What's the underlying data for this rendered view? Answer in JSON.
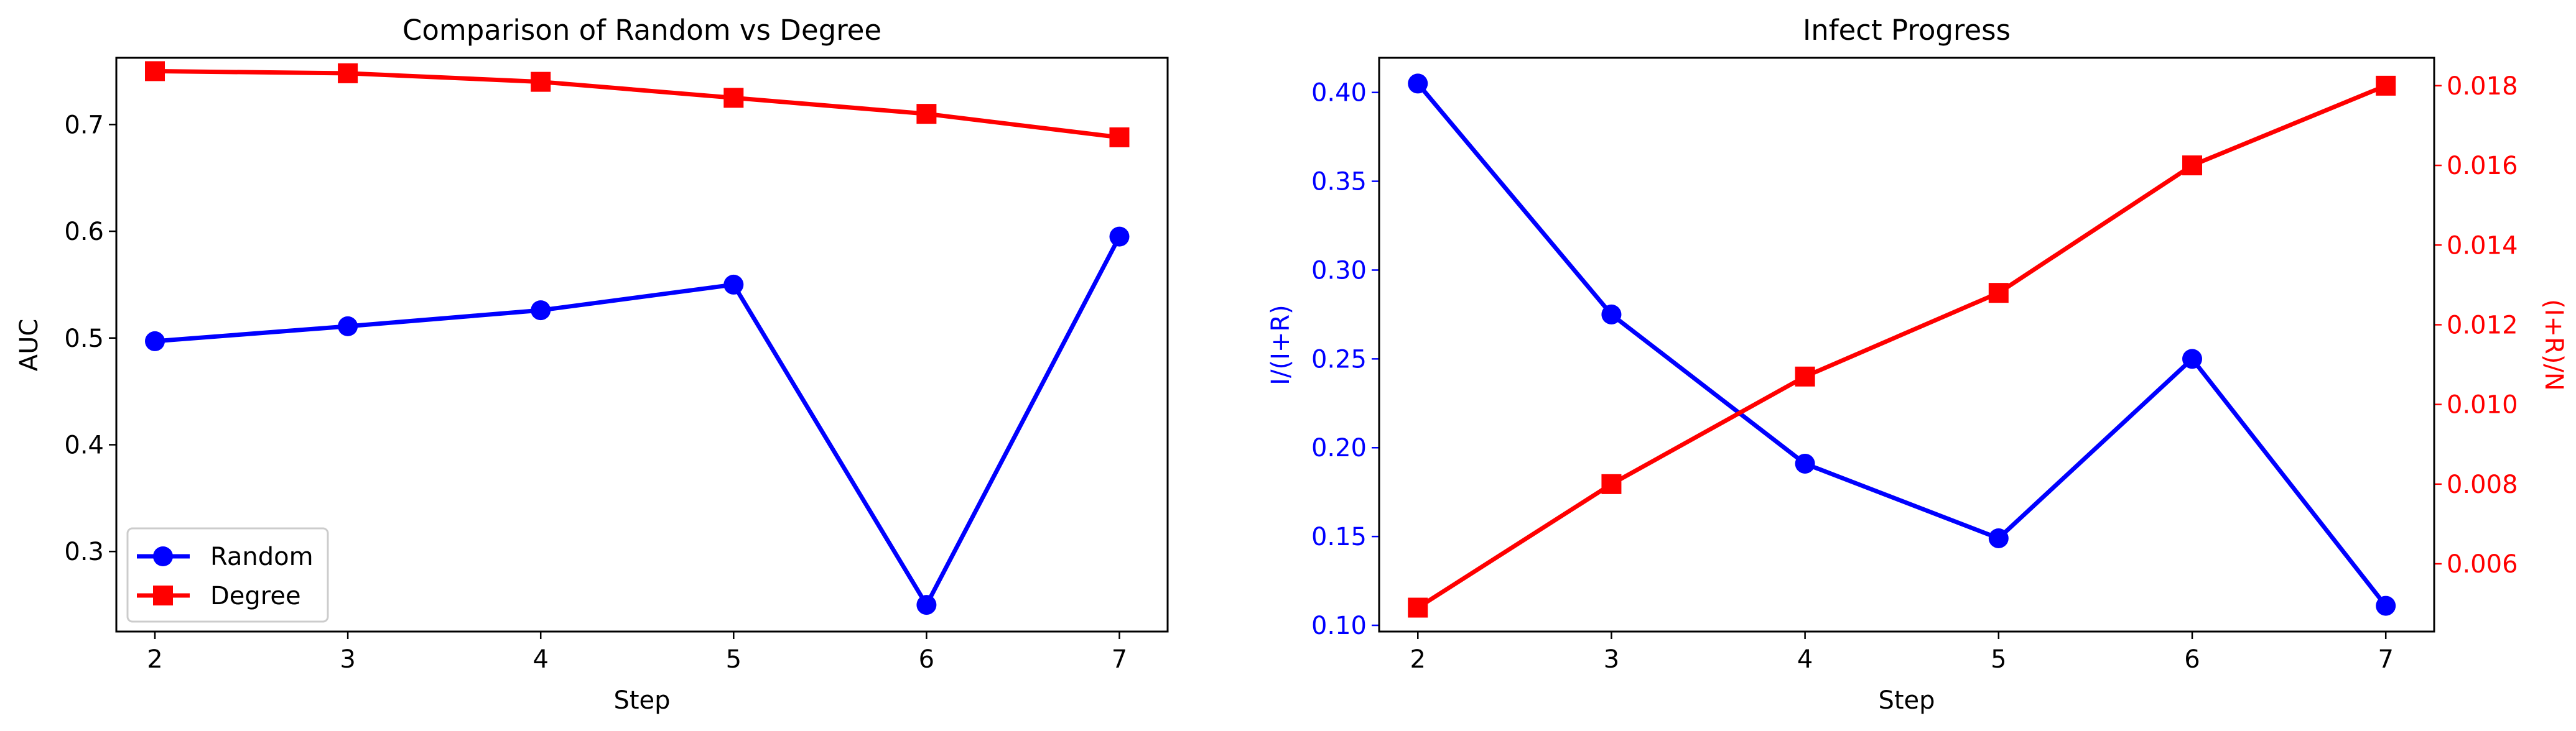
{
  "chart_data": [
    {
      "type": "line",
      "title": "Comparison of Random vs Degree",
      "xlabel": "Step",
      "ylabel": "AUC",
      "x": [
        2,
        3,
        4,
        5,
        6,
        7
      ],
      "xlim": [
        1.8,
        7.25
      ],
      "ylim": [
        0.225,
        0.7625
      ],
      "xticks": [
        2,
        3,
        4,
        5,
        6,
        7
      ],
      "yticks": [
        0.3,
        0.4,
        0.5,
        0.6,
        0.7
      ],
      "legend": "lower-left",
      "grid": false,
      "series": [
        {
          "name": "Random",
          "color": "#0000ff",
          "marker": "circle",
          "values": [
            0.497,
            0.511,
            0.526,
            0.55,
            0.25,
            0.595
          ]
        },
        {
          "name": "Degree",
          "color": "#ff0000",
          "marker": "square",
          "values": [
            0.75,
            0.748,
            0.74,
            0.725,
            0.71,
            0.688
          ]
        }
      ]
    },
    {
      "type": "line",
      "title": "Infect Progress",
      "xlabel": "Step",
      "ylabel": "I/(I+R)",
      "ylabel_color": "#0000ff",
      "ylabel_right": "(I+R)/N",
      "ylabel_right_color": "#ff0000",
      "x": [
        2,
        3,
        4,
        5,
        6,
        7
      ],
      "xlim": [
        1.8,
        7.25
      ],
      "ylim": [
        0.0965,
        0.4195
      ],
      "ylim_right": [
        0.0043,
        0.0187
      ],
      "xticks": [
        2,
        3,
        4,
        5,
        6,
        7
      ],
      "yticks": [
        0.1,
        0.15,
        0.2,
        0.25,
        0.3,
        0.35,
        0.4
      ],
      "yticks_right": [
        0.006,
        0.008,
        0.01,
        0.012,
        0.014,
        0.016,
        0.018
      ],
      "grid": false,
      "series": [
        {
          "name": "I/(I+R)",
          "axis": "left",
          "color": "#0000ff",
          "marker": "circle",
          "values": [
            0.405,
            0.275,
            0.191,
            0.149,
            0.25,
            0.111
          ]
        },
        {
          "name": "(I+R)/N",
          "axis": "right",
          "color": "#ff0000",
          "marker": "square",
          "values": [
            0.0049,
            0.008,
            0.0107,
            0.0128,
            0.016,
            0.018
          ]
        }
      ]
    }
  ]
}
